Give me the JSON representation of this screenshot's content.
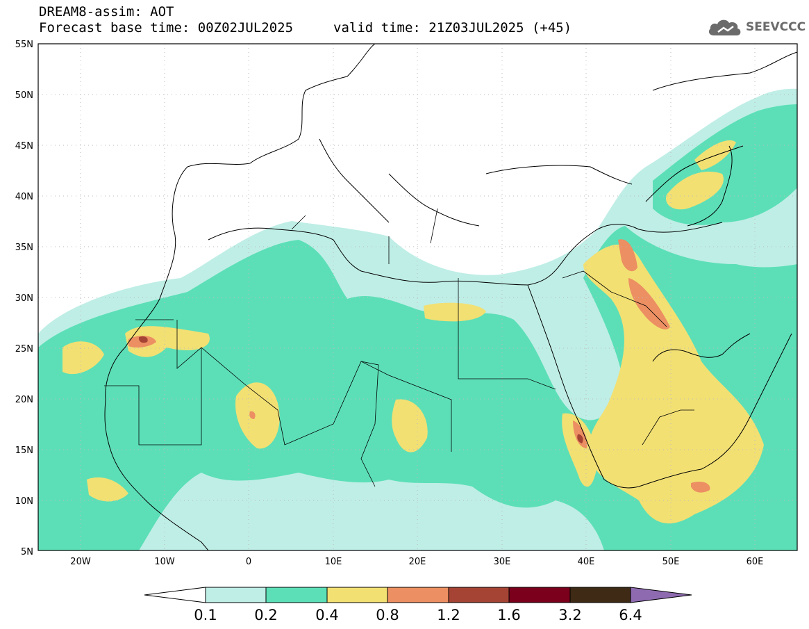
{
  "header": {
    "model_line": "DREAM8-assim: AOT",
    "base_time_line": "Forecast base time: 00Z02JUL2025",
    "valid_time_line": "valid time: 21Z03JUL2025 (+45)"
  },
  "logo": {
    "text": "SEEVCCC",
    "icon": "cloud-icon"
  },
  "map": {
    "lat_labels": [
      "55N",
      "50N",
      "45N",
      "40N",
      "35N",
      "30N",
      "25N",
      "20N",
      "15N",
      "10N",
      "5N"
    ],
    "lon_labels": [
      "20W",
      "10W",
      "0",
      "10E",
      "20E",
      "30E",
      "40E",
      "50E",
      "60E"
    ],
    "lon_range": [
      -25,
      65
    ],
    "lat_range": [
      5,
      55
    ]
  },
  "colorbar": {
    "levels": [
      "0.1",
      "0.2",
      "0.4",
      "0.8",
      "1.2",
      "1.6",
      "3.2",
      "6.4"
    ],
    "colors": [
      "#ffffff",
      "#bfeee6",
      "#5cdfb7",
      "#f2e073",
      "#ec8f62",
      "#a54434",
      "#7a001b",
      "#3e2a15",
      "#8e6bb0"
    ]
  }
}
